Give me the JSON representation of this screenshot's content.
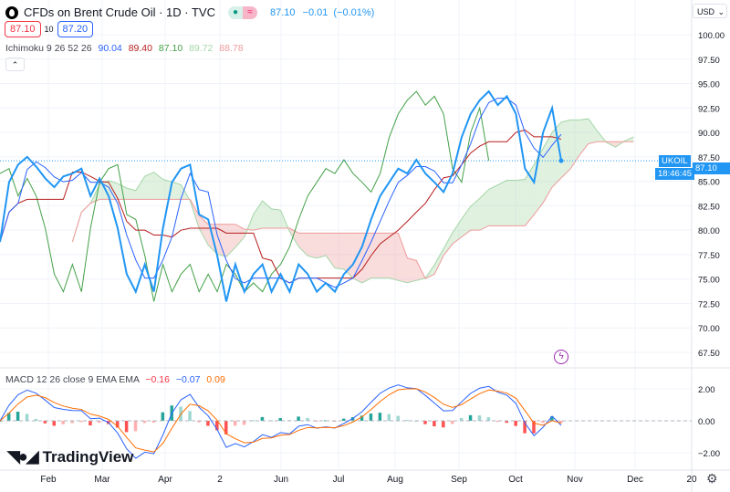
{
  "header": {
    "title": "CFDs on Brent Crude Oil · 1D · TVC",
    "last": "87.10",
    "change": "−0.01",
    "change_pct": "(−0.01%)",
    "bid": "87.10",
    "spread": "10",
    "ask": "87.20",
    "market_icon": "market-open-dot",
    "delay_icon": "approx-icon"
  },
  "indicator": {
    "name": "Ichimoku 9 26 52 26",
    "v1": "90.04",
    "v2": "89.40",
    "v3": "87.10",
    "v4": "89.72",
    "v5": "88.78",
    "collapse_icon": "chevron-up-icon"
  },
  "macd": {
    "name": "MACD 12 26 close 9 EMA EMA",
    "hist": "−0.16",
    "macd": "−0.07",
    "signal": "0.09"
  },
  "price_axis": {
    "currency": "USD",
    "ticks": [
      "100.00",
      "97.50",
      "95.00",
      "92.50",
      "90.00",
      "87.50",
      "85.00",
      "82.50",
      "80.00",
      "77.50",
      "75.00",
      "72.50",
      "70.00",
      "67.50"
    ],
    "symbol": "UKOIL",
    "price": "87.10",
    "countdown": "18:46:45"
  },
  "macd_axis": {
    "ticks": [
      "2.00",
      "0.00",
      "−2.00"
    ]
  },
  "time_axis": {
    "ticks": [
      "Feb",
      "Mar",
      "Apr",
      "2",
      "Jun",
      "Jul",
      "Aug",
      "Sep",
      "Oct",
      "Nov",
      "Dec",
      "20"
    ]
  },
  "brand": "TradingView",
  "colors": {
    "price": "#2196f3",
    "conversion": "#2962ff",
    "base": "#b71c1c",
    "lagging": "#43a047",
    "cloud_up": "#a5d6a7",
    "cloud_down": "#ef9a9a",
    "macd": "#2962ff",
    "signal": "#ff6d00",
    "hist_up": "#26a69a",
    "hist_down": "#ff5252"
  },
  "chart_data": {
    "type": "line",
    "closes": [
      78.8,
      84.9,
      86.7,
      87.5,
      86.5,
      85.3,
      84.4,
      85.5,
      85.8,
      86.3,
      83.5,
      85.3,
      83.5,
      80.2,
      75.5,
      73.7,
      76.5,
      73.7,
      80.2,
      84.9,
      86.3,
      86.7,
      81.6,
      81.1,
      77.4,
      72.7,
      76.5,
      73.7,
      75.5,
      76.5,
      73.7,
      75.5,
      73.7,
      76.5,
      75.5,
      73.7,
      74.6,
      73.7,
      75.5,
      76.5,
      78.3,
      81.1,
      83.5,
      84.9,
      86.3,
      85.8,
      87.2,
      85.8,
      84.9,
      83.9,
      85.8,
      89.5,
      91.9,
      93.3,
      94.2,
      92.8,
      93.7,
      91.9,
      86.3,
      84.9,
      90.0,
      92.5,
      87.1
    ],
    "ylim": [
      67.5,
      100
    ],
    "macd_ylim": [
      -2,
      2
    ]
  }
}
